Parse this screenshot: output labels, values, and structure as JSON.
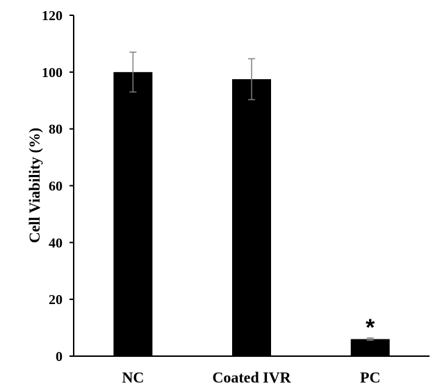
{
  "chart_data": {
    "type": "bar",
    "title": "",
    "xlabel": "",
    "ylabel": "Cell Viability (%)",
    "ylim": [
      0,
      120
    ],
    "yticks": [
      0,
      20,
      40,
      60,
      80,
      100,
      120
    ],
    "grid": false,
    "legend": "none",
    "categories": [
      "NC",
      "Coated IVR",
      "PC"
    ],
    "values": [
      100,
      97.5,
      6
    ],
    "error": [
      7,
      7.2,
      0.4
    ],
    "annotations": [
      {
        "category": "PC",
        "text": "*"
      }
    ],
    "bar_color": "#000000",
    "error_color": "#808080"
  }
}
